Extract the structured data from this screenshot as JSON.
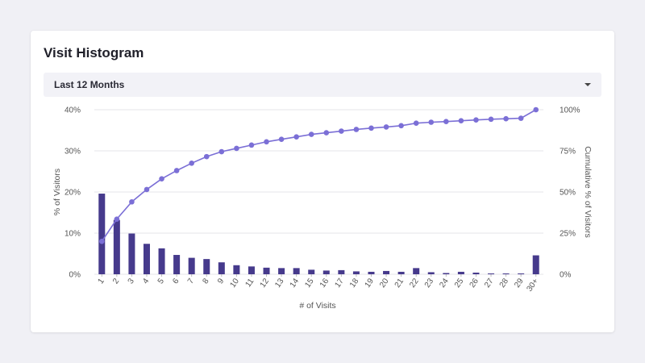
{
  "card": {
    "title": "Visit Histogram"
  },
  "dropdown": {
    "selected": "Last 12 Months",
    "icon": "caret-down-icon"
  },
  "colors": {
    "bar": "#463a8c",
    "line": "#7b6fd6",
    "grid": "#e4e4ea"
  },
  "chart_data": {
    "type": "bar",
    "categories": [
      "1",
      "2",
      "3",
      "4",
      "5",
      "6",
      "7",
      "8",
      "9",
      "10",
      "11",
      "12",
      "13",
      "14",
      "15",
      "16",
      "17",
      "18",
      "19",
      "20",
      "21",
      "22",
      "23",
      "24",
      "25",
      "26",
      "27",
      "28",
      "29",
      "30+"
    ],
    "series": [
      {
        "values": [
          19.6,
          13.2,
          9.9,
          7.4,
          6.3,
          4.7,
          4.0,
          3.7,
          2.9,
          2.2,
          1.9,
          1.6,
          1.5,
          1.5,
          1.1,
          0.9,
          1.0,
          0.7,
          0.6,
          0.8,
          0.6,
          1.5,
          0.5,
          0.3,
          0.6,
          0.4,
          0.2,
          0.2,
          0.2,
          4.6
        ]
      },
      {
        "values": [
          20,
          33.5,
          44,
          51.5,
          58,
          63,
          67.5,
          71.5,
          74.5,
          76.5,
          78.5,
          80.5,
          82,
          83.5,
          85,
          86,
          87,
          88,
          88.8,
          89.5,
          90.3,
          91.8,
          92.4,
          92.8,
          93.3,
          93.8,
          94.2,
          94.5,
          94.8,
          100
        ]
      }
    ],
    "xlabel": "# of Visits",
    "ylabel": "% of Visitors",
    "y2label": "Cumulative % of Visitors",
    "ylim": [
      0,
      40
    ],
    "y2lim": [
      0,
      100
    ],
    "yticks": [
      "0%",
      "10%",
      "20%",
      "30%",
      "40%"
    ],
    "y2ticks": [
      "0%",
      "25%",
      "50%",
      "75%",
      "100%"
    ],
    "grid": true
  }
}
